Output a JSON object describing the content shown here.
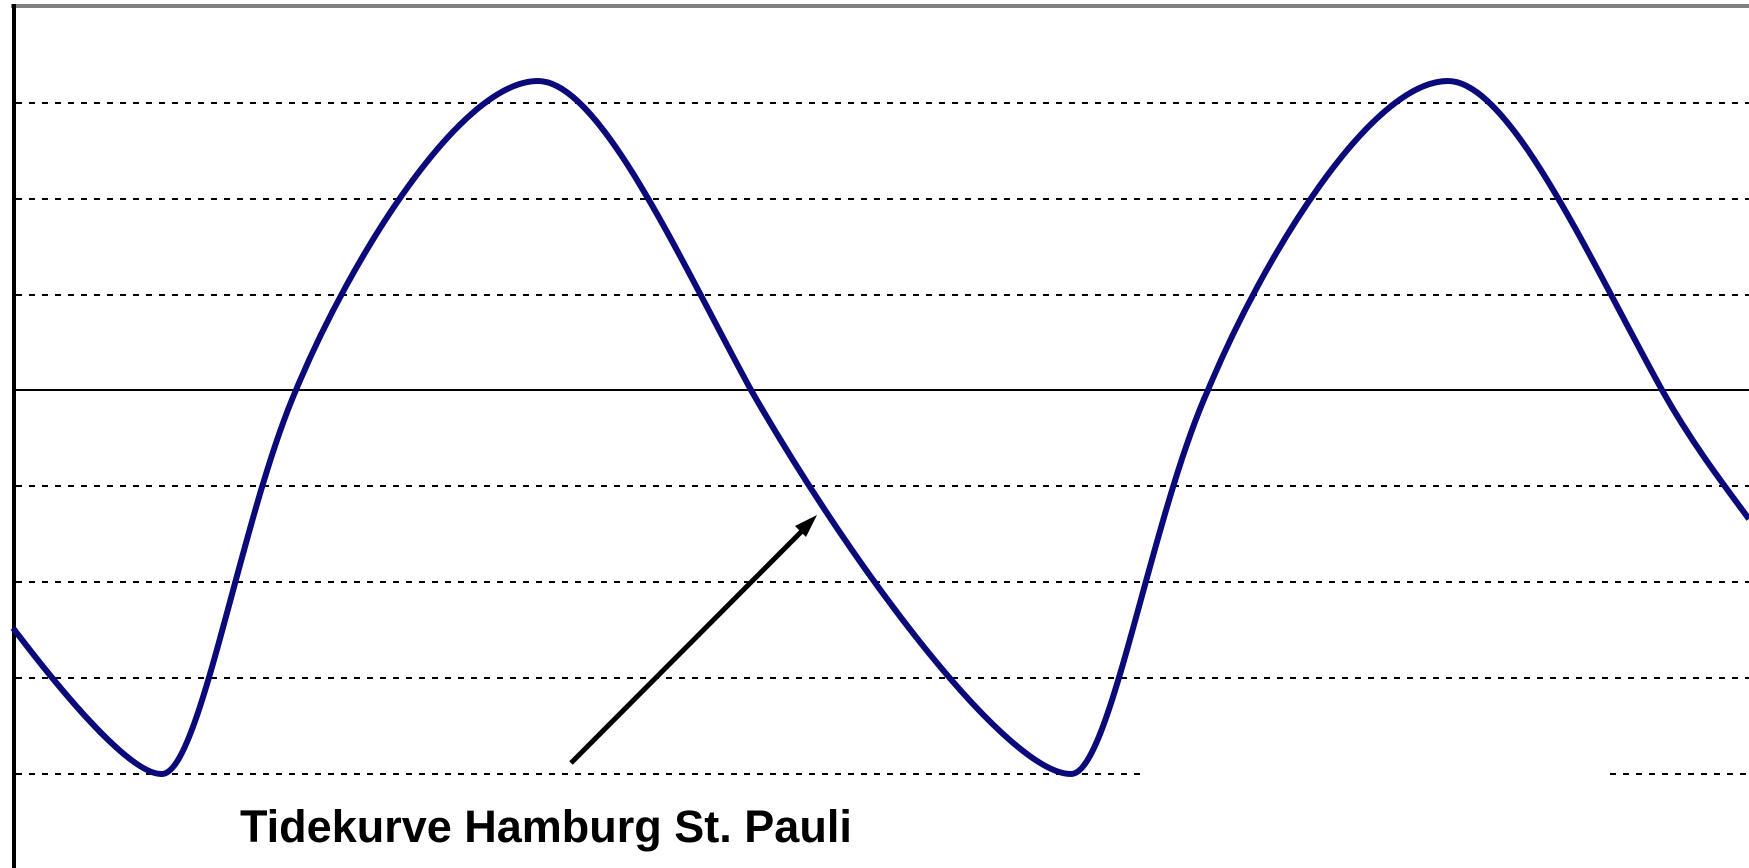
{
  "annotation": {
    "text": "Tidekurve Hamburg St. Pauli"
  }
}
